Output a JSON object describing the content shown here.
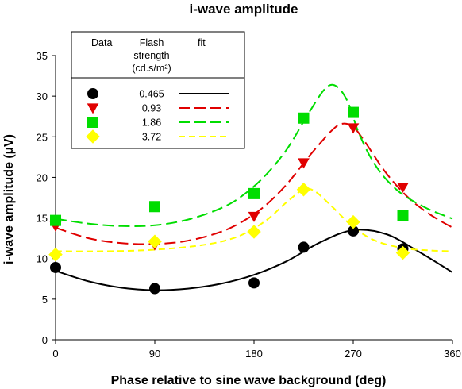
{
  "chart_data": {
    "type": "scatter",
    "title": "i-wave amplitude",
    "xlabel": "Phase relative to sine wave background (deg)",
    "ylabel": "i-wave amplitude (µV)",
    "xlim": [
      0,
      360
    ],
    "ylim": [
      0,
      35
    ],
    "xticks": [
      0,
      90,
      180,
      270,
      360
    ],
    "yticks": [
      0,
      5,
      10,
      15,
      20,
      25,
      30,
      35
    ],
    "grid": false,
    "legend": {
      "placement": "top-left",
      "headers": [
        "Data",
        "Flash strength (cd.s/m²)",
        "fit"
      ],
      "header_data": "Data",
      "header_flash_1": "Flash",
      "header_flash_2": "strength",
      "header_flash_3": "(cd.s/m²)",
      "header_fit": "fit"
    },
    "series": [
      {
        "name": "0.465",
        "marker": "circle",
        "color": "#000000",
        "fit_style": "solid",
        "x": [
          0,
          90,
          180,
          225,
          270,
          315
        ],
        "y": [
          8.9,
          6.3,
          7.0,
          11.4,
          13.4,
          11.2
        ],
        "fit_x": [
          0,
          30,
          60,
          90,
          120,
          150,
          180,
          210,
          240,
          270,
          300,
          330,
          360
        ],
        "fit_y": [
          8.5,
          7.2,
          6.4,
          6.1,
          6.3,
          6.9,
          8.0,
          9.7,
          12.0,
          13.5,
          13.0,
          10.8,
          8.3
        ]
      },
      {
        "name": "0.93",
        "marker": "triangle-down",
        "color": "#e00000",
        "fit_style": "long-dash",
        "x": [
          0,
          90,
          180,
          225,
          270,
          315
        ],
        "y": [
          14.0,
          11.7,
          15.2,
          21.8,
          26.1,
          18.8
        ],
        "fit_x": [
          0,
          30,
          60,
          90,
          120,
          150,
          170,
          190,
          210,
          230,
          250,
          260,
          270,
          280,
          300,
          320,
          340,
          360
        ],
        "fit_y": [
          13.8,
          12.5,
          11.9,
          11.8,
          12.2,
          13.3,
          14.6,
          16.5,
          19.2,
          22.6,
          25.7,
          26.6,
          26.2,
          24.5,
          20.5,
          17.5,
          15.4,
          13.8
        ]
      },
      {
        "name": "1.86",
        "marker": "square",
        "color": "#00dd00",
        "fit_style": "long-dash",
        "x": [
          0,
          90,
          180,
          225,
          270,
          315
        ],
        "y": [
          14.7,
          16.4,
          18.0,
          27.3,
          28.0,
          15.3
        ],
        "fit_x": [
          0,
          30,
          60,
          90,
          120,
          150,
          170,
          190,
          210,
          230,
          245,
          255,
          265,
          275,
          290,
          310,
          335,
          360
        ],
        "fit_y": [
          14.9,
          14.3,
          14.0,
          14.1,
          14.8,
          16.2,
          17.8,
          20.2,
          23.5,
          28.0,
          31.0,
          31.2,
          29.3,
          25.5,
          21.5,
          18.4,
          16.3,
          14.9
        ]
      },
      {
        "name": "3.72",
        "marker": "diamond",
        "color": "#ffff00",
        "fit_style": "short-dash",
        "x": [
          0,
          90,
          180,
          225,
          270,
          315
        ],
        "y": [
          10.5,
          12.1,
          13.3,
          18.5,
          14.5,
          10.7
        ],
        "fit_x": [
          0,
          45,
          90,
          135,
          165,
          190,
          210,
          225,
          235,
          250,
          270,
          290,
          315,
          340,
          360
        ],
        "fit_y": [
          10.9,
          10.9,
          11.1,
          11.7,
          12.7,
          14.6,
          17.0,
          18.5,
          18.3,
          16.5,
          13.9,
          12.2,
          11.3,
          11.0,
          10.9
        ]
      }
    ]
  }
}
